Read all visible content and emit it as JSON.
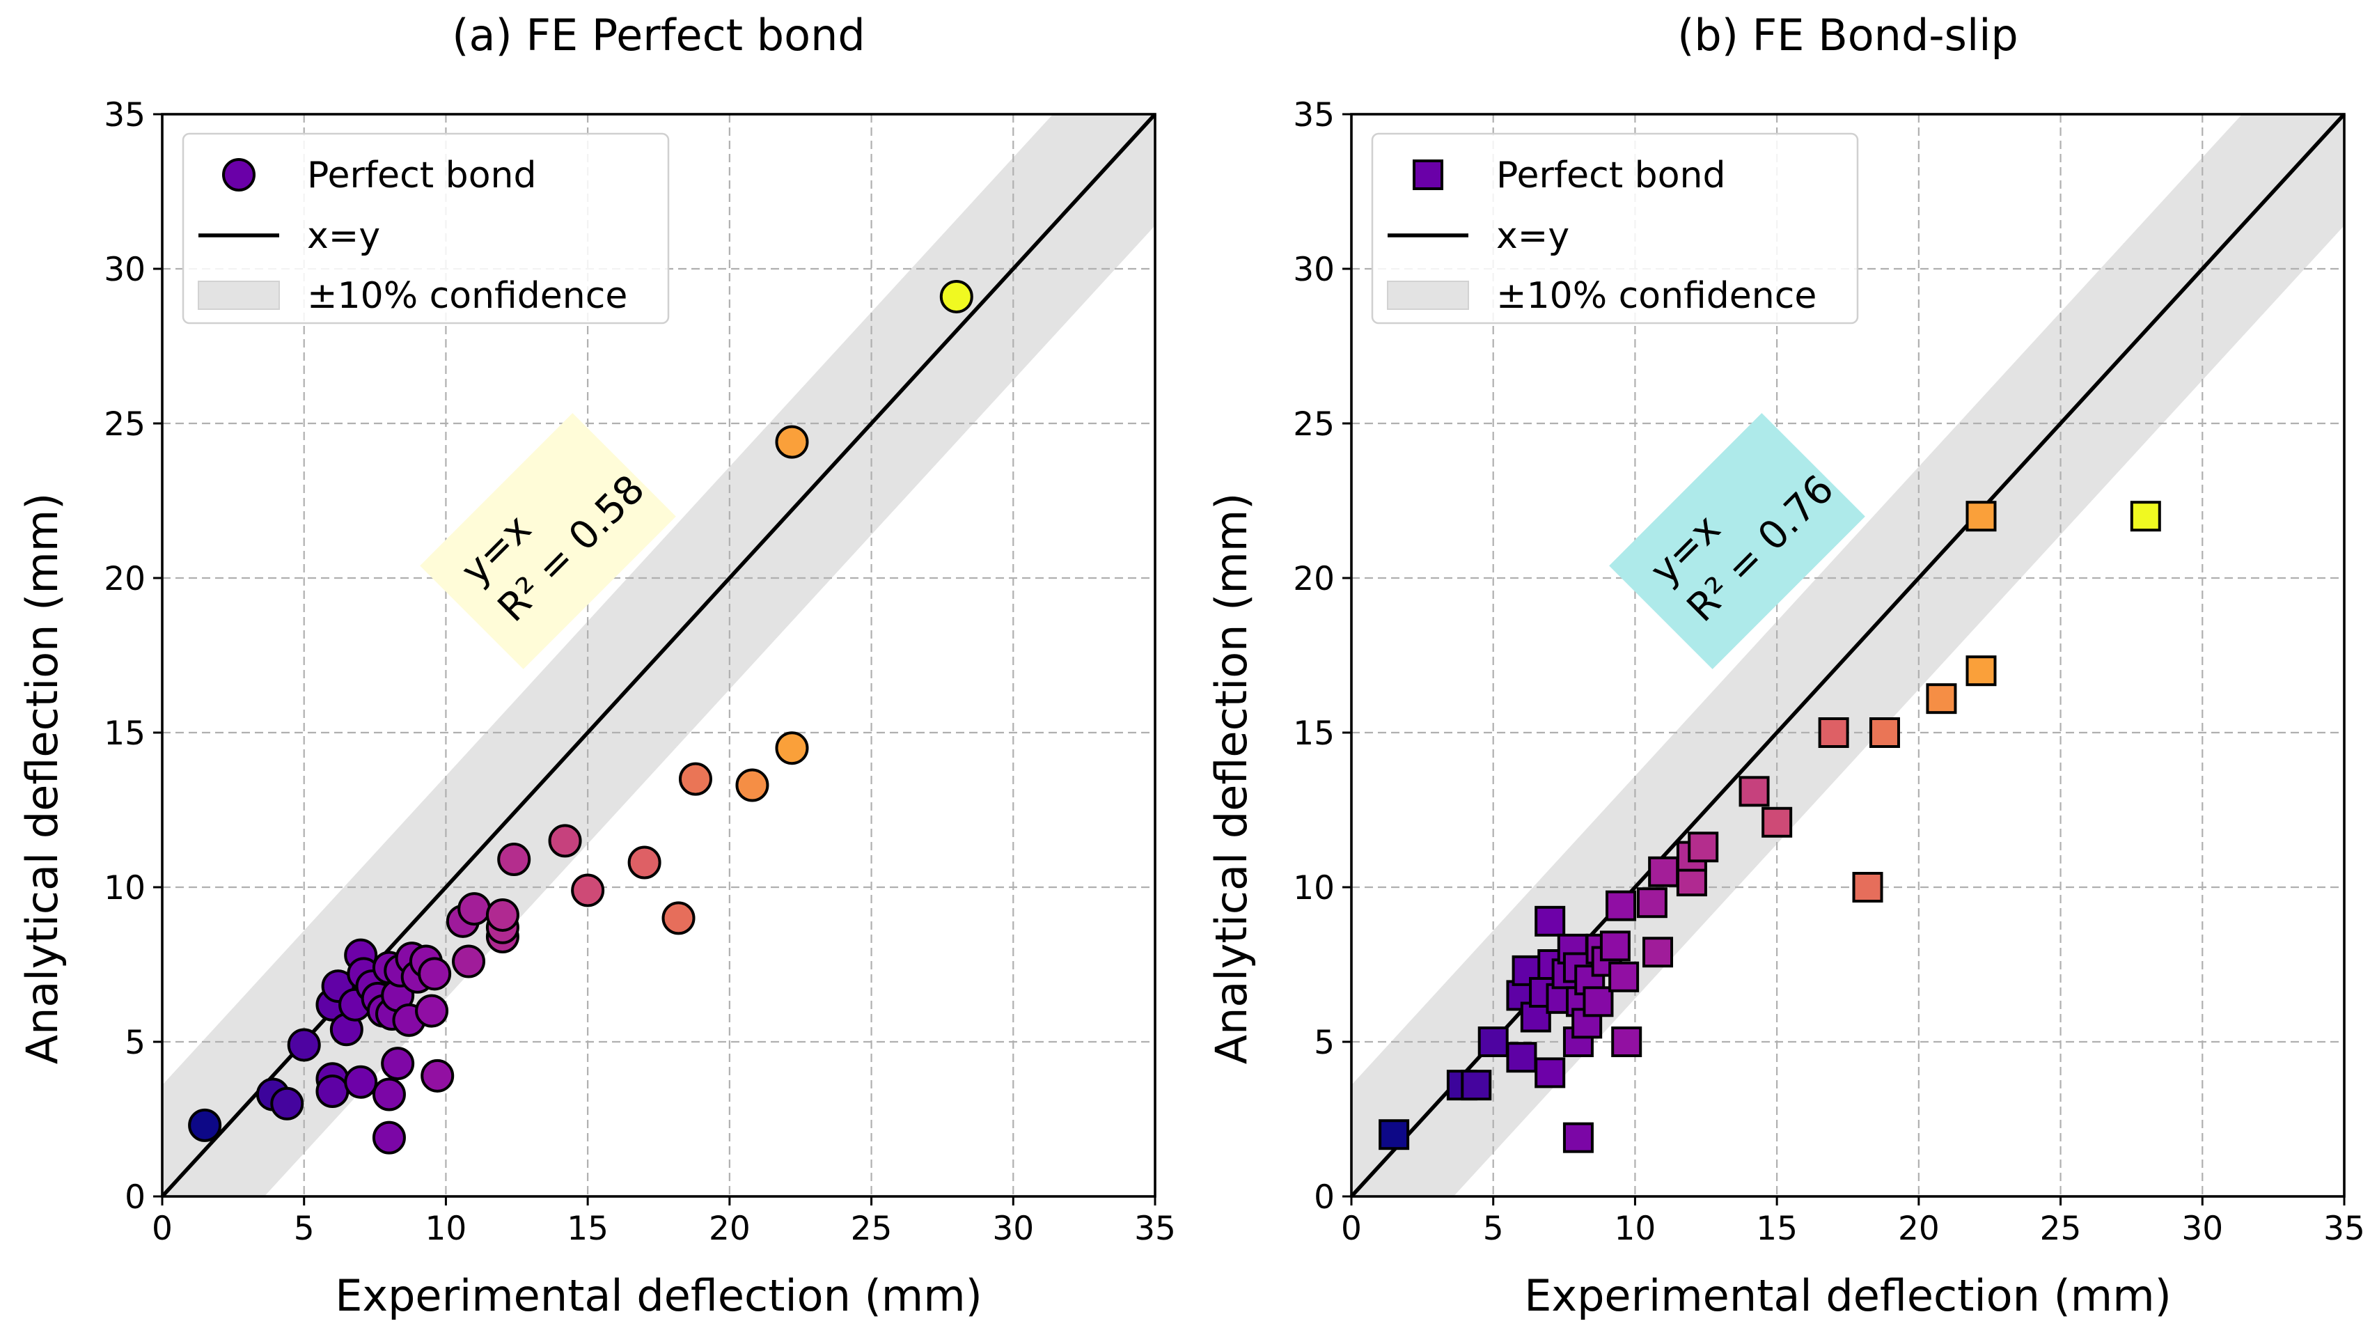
{
  "chart_data": [
    {
      "type": "scatter",
      "title": "(a) FE Perfect bond",
      "xlabel": "Experimental deflection (mm)",
      "ylabel": "Analytical deflection (mm)",
      "xlim": [
        0,
        35
      ],
      "ylim": [
        0,
        35
      ],
      "xticks": [
        "0",
        "5",
        "10",
        "15",
        "20",
        "25",
        "30",
        "35"
      ],
      "yticks": [
        "0",
        "5",
        "10",
        "15",
        "20",
        "25",
        "30",
        "35"
      ],
      "grid": true,
      "marker": "circle",
      "colormap": "plasma",
      "legend": {
        "position": "upper-left",
        "entries": [
          "Perfect bond",
          "x=y",
          "±10% confidence"
        ]
      },
      "reference_line": "x=y",
      "confidence_band_pct": 10,
      "annotation": {
        "line1": "y=x",
        "line2": "R² = 0.58",
        "facecolor": "#fffcd8",
        "rotation": -45
      },
      "points": [
        {
          "x": 1.5,
          "y": 2.3
        },
        {
          "x": 3.9,
          "y": 3.3
        },
        {
          "x": 4.4,
          "y": 3.0
        },
        {
          "x": 5.0,
          "y": 4.9
        },
        {
          "x": 6.0,
          "y": 3.8
        },
        {
          "x": 6.0,
          "y": 3.4
        },
        {
          "x": 7.0,
          "y": 3.7
        },
        {
          "x": 8.0,
          "y": 1.9
        },
        {
          "x": 8.0,
          "y": 3.3
        },
        {
          "x": 8.3,
          "y": 4.3
        },
        {
          "x": 9.7,
          "y": 3.9
        },
        {
          "x": 6.0,
          "y": 6.2
        },
        {
          "x": 6.2,
          "y": 6.8
        },
        {
          "x": 6.5,
          "y": 5.4
        },
        {
          "x": 6.8,
          "y": 6.2
        },
        {
          "x": 7.0,
          "y": 7.8
        },
        {
          "x": 7.1,
          "y": 7.2
        },
        {
          "x": 7.4,
          "y": 6.8
        },
        {
          "x": 7.6,
          "y": 6.4
        },
        {
          "x": 7.8,
          "y": 6.0
        },
        {
          "x": 8.0,
          "y": 7.4
        },
        {
          "x": 8.1,
          "y": 5.9
        },
        {
          "x": 8.3,
          "y": 6.5
        },
        {
          "x": 8.4,
          "y": 7.3
        },
        {
          "x": 8.7,
          "y": 5.7
        },
        {
          "x": 8.8,
          "y": 7.7
        },
        {
          "x": 9.0,
          "y": 7.1
        },
        {
          "x": 9.3,
          "y": 7.6
        },
        {
          "x": 9.5,
          "y": 6.0
        },
        {
          "x": 9.6,
          "y": 7.2
        },
        {
          "x": 10.6,
          "y": 8.9
        },
        {
          "x": 10.8,
          "y": 7.6
        },
        {
          "x": 11.0,
          "y": 9.3
        },
        {
          "x": 12.0,
          "y": 8.4
        },
        {
          "x": 12.0,
          "y": 8.7
        },
        {
          "x": 12.0,
          "y": 9.1
        },
        {
          "x": 12.4,
          "y": 10.9
        },
        {
          "x": 14.2,
          "y": 11.5
        },
        {
          "x": 15.0,
          "y": 9.9
        },
        {
          "x": 17.0,
          "y": 10.8
        },
        {
          "x": 18.2,
          "y": 9.0
        },
        {
          "x": 18.8,
          "y": 13.5
        },
        {
          "x": 20.8,
          "y": 13.3
        },
        {
          "x": 22.2,
          "y": 14.5
        },
        {
          "x": 22.2,
          "y": 24.4
        },
        {
          "x": 28.0,
          "y": 29.1
        }
      ]
    },
    {
      "type": "scatter",
      "title": "(b) FE Bond-slip",
      "xlabel": "Experimental deflection (mm)",
      "ylabel": "Analytical deflection (mm)",
      "xlim": [
        0,
        35
      ],
      "ylim": [
        0,
        35
      ],
      "xticks": [
        "0",
        "5",
        "10",
        "15",
        "20",
        "25",
        "30",
        "35"
      ],
      "yticks": [
        "0",
        "5",
        "10",
        "15",
        "20",
        "25",
        "30",
        "35"
      ],
      "grid": true,
      "marker": "square",
      "colormap": "plasma",
      "legend": {
        "position": "upper-left",
        "entries": [
          "Perfect bond",
          "x=y",
          "±10% confidence"
        ]
      },
      "reference_line": "x=y",
      "confidence_band_pct": 10,
      "annotation": {
        "line1": "y=x",
        "line2": "R² = 0.76",
        "facecolor": "#aeeaea",
        "rotation": -45
      },
      "points": [
        {
          "x": 1.5,
          "y": 2.0
        },
        {
          "x": 3.9,
          "y": 3.6
        },
        {
          "x": 4.4,
          "y": 3.6
        },
        {
          "x": 5.0,
          "y": 5.0
        },
        {
          "x": 6.0,
          "y": 4.5
        },
        {
          "x": 7.0,
          "y": 4.0
        },
        {
          "x": 8.0,
          "y": 1.9
        },
        {
          "x": 8.0,
          "y": 5.0
        },
        {
          "x": 9.7,
          "y": 5.0
        },
        {
          "x": 6.0,
          "y": 6.5
        },
        {
          "x": 6.2,
          "y": 7.3
        },
        {
          "x": 6.5,
          "y": 5.8
        },
        {
          "x": 6.8,
          "y": 6.6
        },
        {
          "x": 7.0,
          "y": 8.9
        },
        {
          "x": 7.1,
          "y": 7.5
        },
        {
          "x": 7.4,
          "y": 6.4
        },
        {
          "x": 7.6,
          "y": 7.2
        },
        {
          "x": 7.8,
          "y": 8.0
        },
        {
          "x": 8.0,
          "y": 7.4
        },
        {
          "x": 8.1,
          "y": 6.3
        },
        {
          "x": 8.3,
          "y": 5.6
        },
        {
          "x": 8.4,
          "y": 7.0
        },
        {
          "x": 8.7,
          "y": 6.3
        },
        {
          "x": 8.8,
          "y": 8.0
        },
        {
          "x": 9.0,
          "y": 7.6
        },
        {
          "x": 9.3,
          "y": 8.1
        },
        {
          "x": 9.5,
          "y": 9.4
        },
        {
          "x": 9.6,
          "y": 7.1
        },
        {
          "x": 10.6,
          "y": 9.5
        },
        {
          "x": 10.8,
          "y": 7.9
        },
        {
          "x": 11.0,
          "y": 10.5
        },
        {
          "x": 12.0,
          "y": 10.2
        },
        {
          "x": 12.0,
          "y": 11.0
        },
        {
          "x": 12.4,
          "y": 11.3
        },
        {
          "x": 14.2,
          "y": 13.1
        },
        {
          "x": 15.0,
          "y": 12.1
        },
        {
          "x": 17.0,
          "y": 15.0
        },
        {
          "x": 18.2,
          "y": 10.0
        },
        {
          "x": 18.8,
          "y": 15.0
        },
        {
          "x": 20.8,
          "y": 16.1
        },
        {
          "x": 22.2,
          "y": 17.0
        },
        {
          "x": 22.2,
          "y": 22.0
        },
        {
          "x": 28.0,
          "y": 22.0
        }
      ]
    }
  ]
}
